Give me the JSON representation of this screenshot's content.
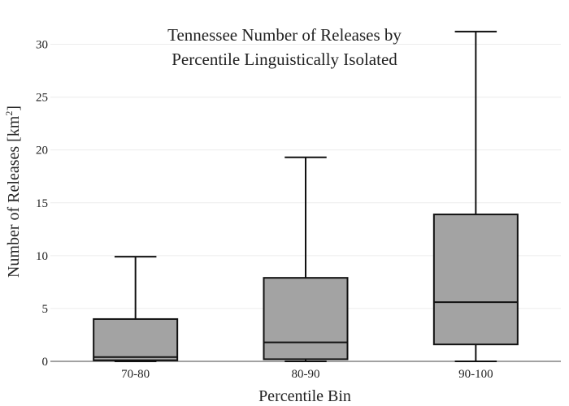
{
  "chart_data": {
    "type": "box",
    "title": [
      "Tennessee Number of Releases by",
      "Percentile Linguistically Isolated"
    ],
    "xlabel": "Percentile Bin",
    "ylabel": "Number of Releases  [km",
    "ylabel_sup": "2",
    "ylabel_end": "]",
    "categories": [
      "70-80",
      "80-90",
      "90-100"
    ],
    "ylim": [
      0,
      31.5
    ],
    "yticks": [
      0,
      5,
      10,
      15,
      20,
      25,
      30
    ],
    "box_color": "#a3a3a3",
    "line_color": "#111111",
    "grid": true,
    "series": [
      {
        "category": "70-80",
        "min": 0,
        "q1": 0.1,
        "median": 0.4,
        "q3": 4.0,
        "max": 9.9
      },
      {
        "category": "80-90",
        "min": 0,
        "q1": 0.2,
        "median": 1.8,
        "q3": 7.9,
        "max": 19.3
      },
      {
        "category": "90-100",
        "min": 0,
        "q1": 1.6,
        "median": 5.6,
        "q3": 13.9,
        "max": 31.2
      }
    ]
  }
}
